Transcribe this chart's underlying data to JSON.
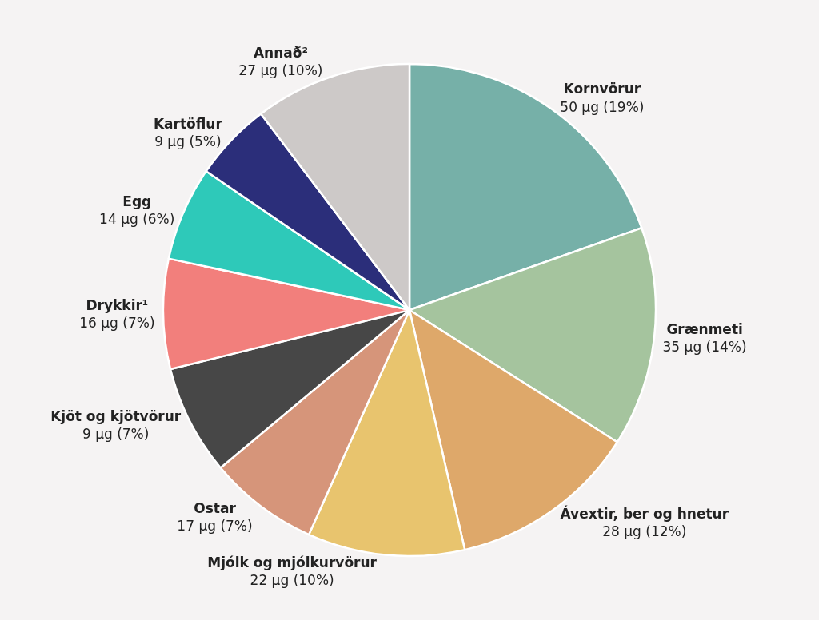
{
  "chart_data": {
    "type": "pie",
    "categories": [
      "Kornvörur",
      "Grænmeti",
      "Ávextir, ber og hnetur",
      "Mjólk og mjólkurvörur",
      "Ostar",
      "Kjöt og kjötvörur",
      "Drykkir¹",
      "Egg",
      "Kartöflur",
      "Annað²"
    ],
    "values": [
      19,
      14,
      12,
      10,
      7,
      7,
      7,
      6,
      5,
      10
    ],
    "value_labels": [
      "50 µg (19%)",
      "35 µg (14%)",
      "28 µg (12%)",
      "22 µg (10%)",
      "17 µg (7%)",
      "9 µg (7%)",
      "16 µg (7%)",
      "14 µg (6%)",
      "9 µg (5%)",
      "27 µg (10%)"
    ],
    "colors": [
      "#76b0a8",
      "#a5c49e",
      "#dea86a",
      "#e8c46e",
      "#d6957a",
      "#474747",
      "#f27f7c",
      "#2ec9b9",
      "#2b2e7a",
      "#cdc9c8"
    ]
  }
}
